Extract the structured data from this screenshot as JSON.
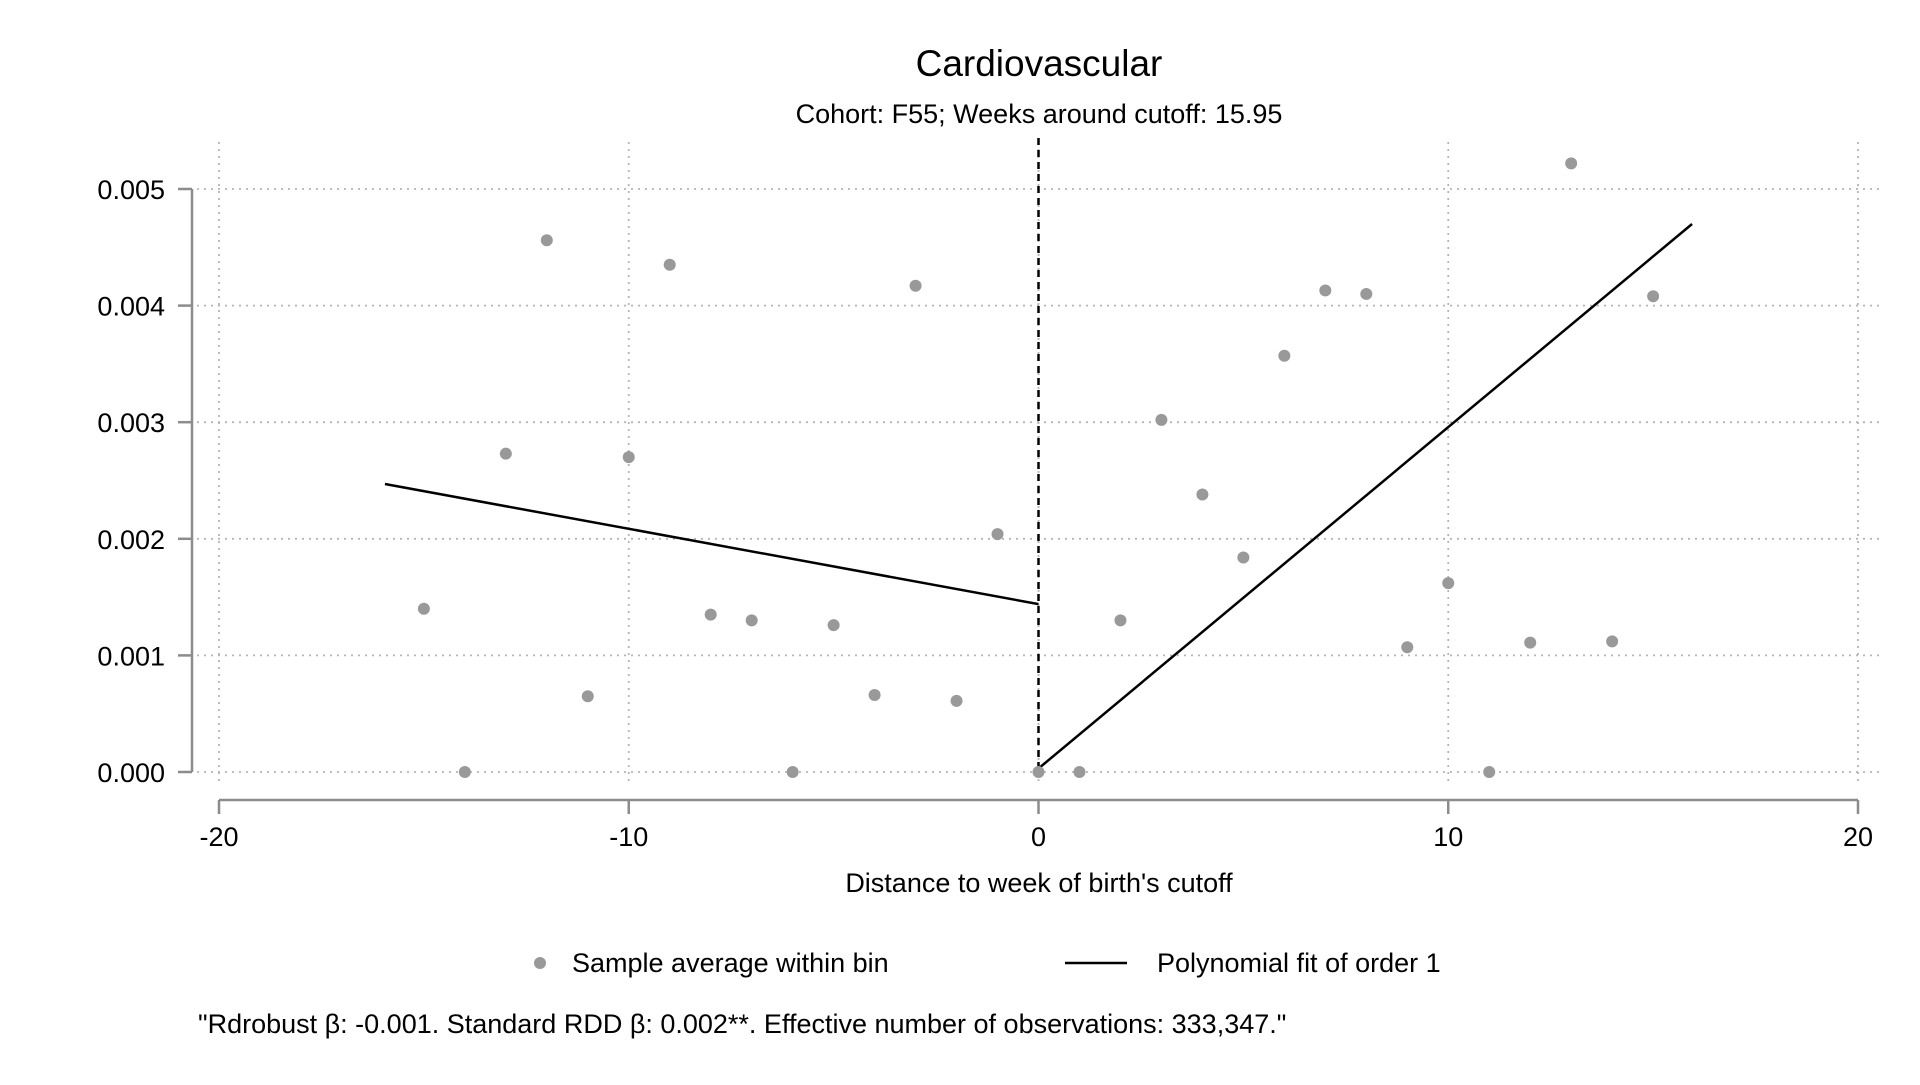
{
  "chart_data": {
    "type": "scatter",
    "title": "Cardiovascular",
    "subtitle": "Cohort: F55; Weeks around cutoff: 15.95",
    "xlabel": "Distance to week of birth's cutoff",
    "ylabel": "",
    "xlim": [
      -20,
      20
    ],
    "ylim": [
      0,
      0.005
    ],
    "xticks": [
      -20,
      -10,
      0,
      10,
      20
    ],
    "xtick_labels": [
      "-20",
      "-10",
      "0",
      "10",
      "20"
    ],
    "yticks": [
      0,
      0.001,
      0.002,
      0.003,
      0.004,
      0.005
    ],
    "ytick_labels": [
      "0.000",
      "0.001",
      "0.002",
      "0.003",
      "0.004",
      "0.005"
    ],
    "grid": true,
    "cutoff_x": 0,
    "series": [
      {
        "name": "Sample average within bin",
        "kind": "scatter",
        "color": "#999999",
        "points": [
          {
            "x": -15,
            "y": 0.0014
          },
          {
            "x": -14,
            "y": 0.0
          },
          {
            "x": -13,
            "y": 0.00273
          },
          {
            "x": -12,
            "y": 0.00456
          },
          {
            "x": -11,
            "y": 0.00065
          },
          {
            "x": -10,
            "y": 0.0027
          },
          {
            "x": -9,
            "y": 0.00435
          },
          {
            "x": -8,
            "y": 0.00135
          },
          {
            "x": -7,
            "y": 0.0013
          },
          {
            "x": -6,
            "y": 0.0
          },
          {
            "x": -5,
            "y": 0.00126
          },
          {
            "x": -4,
            "y": 0.00066
          },
          {
            "x": -3,
            "y": 0.00417
          },
          {
            "x": -2,
            "y": 0.00061
          },
          {
            "x": -1,
            "y": 0.00204
          },
          {
            "x": 0,
            "y": 0.0
          },
          {
            "x": 1,
            "y": 0.0
          },
          {
            "x": 2,
            "y": 0.0013
          },
          {
            "x": 3,
            "y": 0.00302
          },
          {
            "x": 4,
            "y": 0.00238
          },
          {
            "x": 5,
            "y": 0.00184
          },
          {
            "x": 6,
            "y": 0.00357
          },
          {
            "x": 7,
            "y": 0.00413
          },
          {
            "x": 8,
            "y": 0.0041
          },
          {
            "x": 9,
            "y": 0.00107
          },
          {
            "x": 10,
            "y": 0.00162
          },
          {
            "x": 11,
            "y": 0.0
          },
          {
            "x": 12,
            "y": 0.00111
          },
          {
            "x": 13,
            "y": 0.00522
          },
          {
            "x": 14,
            "y": 0.00112
          },
          {
            "x": 15,
            "y": 0.00408
          }
        ]
      },
      {
        "name": "Polynomial fit of order 1",
        "kind": "line",
        "color": "#000000",
        "segments": [
          [
            {
              "x": -15.95,
              "y": 0.00247
            },
            {
              "x": 0,
              "y": 0.00144
            }
          ],
          [
            {
              "x": 0,
              "y": 3e-05
            },
            {
              "x": 15.95,
              "y": 0.0047
            }
          ]
        ]
      }
    ],
    "legend": {
      "position": "bottom",
      "entries": [
        "Sample average within bin",
        "Polynomial fit of order 1"
      ]
    },
    "note": "\"Rdrobust β: -0.001. Standard RDD β: 0.002**. Effective number of observations: 333,347.\""
  }
}
